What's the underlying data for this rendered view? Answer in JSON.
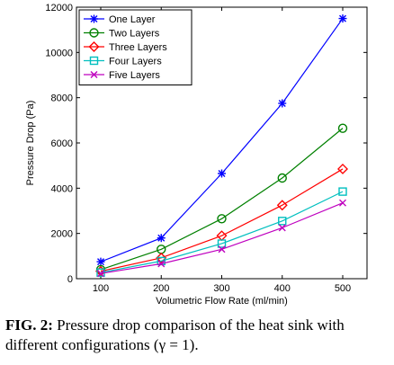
{
  "chart_data": {
    "type": "line",
    "title": "",
    "xlabel": "Volumetric Flow Rate (ml/min)",
    "ylabel": "Pressure Drop (Pa)",
    "x": [
      100,
      200,
      300,
      400,
      500
    ],
    "xlim": [
      100,
      500
    ],
    "ylim": [
      0,
      12000
    ],
    "xticks": [
      "100",
      "200",
      "300",
      "400",
      "500"
    ],
    "yticks": [
      "0",
      "2000",
      "4000",
      "6000",
      "8000",
      "10000",
      "12000"
    ],
    "grid": false,
    "legend_position": "top-left",
    "series": [
      {
        "name": "One Layer",
        "color": "#0000ff",
        "marker": "star",
        "values": [
          750,
          1800,
          4650,
          7750,
          11500
        ]
      },
      {
        "name": "Two Layers",
        "color": "#008000",
        "marker": "circle",
        "values": [
          400,
          1300,
          2650,
          4450,
          6650
        ]
      },
      {
        "name": "Three Layers",
        "color": "#ff0000",
        "marker": "diamond",
        "values": [
          330,
          920,
          1900,
          3250,
          4850
        ]
      },
      {
        "name": "Four Layers",
        "color": "#00bfbf",
        "marker": "square",
        "values": [
          270,
          780,
          1550,
          2550,
          3850
        ]
      },
      {
        "name": "Five Layers",
        "color": "#bf00bf",
        "marker": "x",
        "values": [
          230,
          660,
          1300,
          2250,
          3350
        ]
      }
    ]
  },
  "caption": {
    "label": "FIG. 2:",
    "text": " Pressure drop comparison of the heat sink with different configurations (γ = 1)."
  }
}
